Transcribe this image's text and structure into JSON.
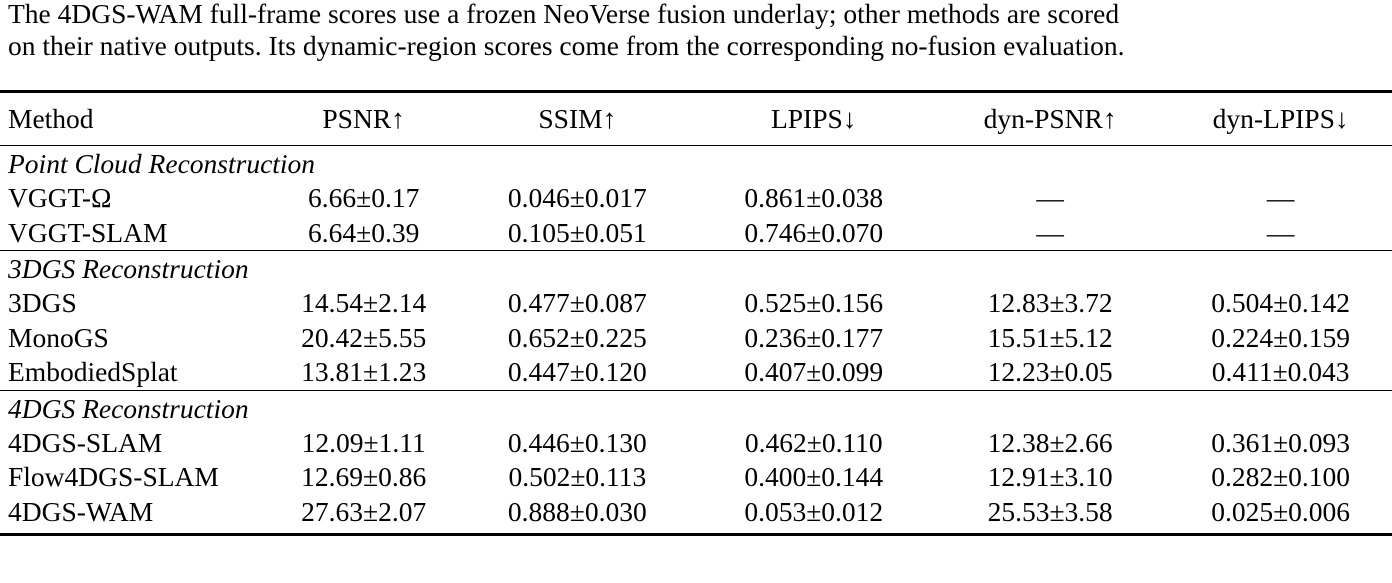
{
  "caption": {
    "line1": "The 4DGS-WAM full-frame scores use a frozen NeoVerse fusion underlay; other methods are scored",
    "line2": "on their native outputs. Its dynamic-region scores come from the corresponding no-fusion evaluation."
  },
  "table": {
    "headers": [
      "Method",
      "PSNR↑",
      "SSIM↑",
      "LPIPS↓",
      "dyn-PSNR↑",
      "dyn-LPIPS↓"
    ],
    "groups": [
      {
        "title": "Point Cloud Reconstruction",
        "rows": [
          {
            "method": "VGGT-Ω",
            "psnr": "6.66±0.17",
            "ssim": "0.046±0.017",
            "lpips": "0.861±0.038",
            "dyn_psnr": "—",
            "dyn_lpips": "—"
          },
          {
            "method": "VGGT-SLAM",
            "psnr": "6.64±0.39",
            "ssim": "0.105±0.051",
            "lpips": "0.746±0.070",
            "dyn_psnr": "—",
            "dyn_lpips": "—"
          }
        ]
      },
      {
        "title": "3DGS Reconstruction",
        "rows": [
          {
            "method": "3DGS",
            "psnr": "14.54±2.14",
            "ssim": "0.477±0.087",
            "lpips": "0.525±0.156",
            "dyn_psnr": "12.83±3.72",
            "dyn_lpips": "0.504±0.142"
          },
          {
            "method": "MonoGS",
            "psnr": "20.42±5.55",
            "ssim": "0.652±0.225",
            "lpips": "0.236±0.177",
            "dyn_psnr": "15.51±5.12",
            "dyn_lpips": "0.224±0.159"
          },
          {
            "method": "EmbodiedSplat",
            "psnr": "13.81±1.23",
            "ssim": "0.447±0.120",
            "lpips": "0.407±0.099",
            "dyn_psnr": "12.23±0.05",
            "dyn_lpips": "0.411±0.043"
          }
        ]
      },
      {
        "title": "4DGS Reconstruction",
        "rows": [
          {
            "method": "4DGS-SLAM",
            "psnr": "12.09±1.11",
            "ssim": "0.446±0.130",
            "lpips": "0.462±0.110",
            "dyn_psnr": "12.38±2.66",
            "dyn_lpips": "0.361±0.093"
          },
          {
            "method": "Flow4DGS-SLAM",
            "psnr": "12.69±0.86",
            "ssim": "0.502±0.113",
            "lpips": "0.400±0.144",
            "dyn_psnr": "12.91±3.10",
            "dyn_lpips": "0.282±0.100"
          },
          {
            "method": "4DGS-WAM",
            "psnr": "27.63±2.07",
            "ssim": "0.888±0.030",
            "lpips": "0.053±0.012",
            "dyn_psnr": "25.53±3.58",
            "dyn_lpips": "0.025±0.006"
          }
        ]
      }
    ]
  }
}
